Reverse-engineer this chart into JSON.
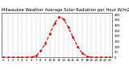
{
  "title": "Milwaukee Weather Average Solar Radiation per Hour W/m2 (Last 24 Hours)",
  "title_fontsize": 3.8,
  "line_color": "#ff0000",
  "bg_color": "#ffffff",
  "plot_bg_color": "#ffffff",
  "grid_color": "#888888",
  "x_values": [
    0,
    1,
    2,
    3,
    4,
    5,
    6,
    7,
    8,
    9,
    10,
    11,
    12,
    13,
    14,
    15,
    16,
    17,
    18,
    19,
    20,
    21,
    22,
    23
  ],
  "y_values": [
    0,
    0,
    0,
    0,
    0,
    0,
    2,
    15,
    60,
    130,
    220,
    320,
    380,
    360,
    280,
    190,
    100,
    40,
    10,
    1,
    0,
    0,
    0,
    0
  ],
  "ylim": [
    0,
    420
  ],
  "xlim": [
    -0.5,
    23.5
  ],
  "yticks": [
    0,
    50,
    100,
    150,
    200,
    250,
    300,
    350,
    400
  ],
  "ytick_labels": [
    "0",
    "50",
    "100",
    "150",
    "200",
    "250",
    "300",
    "350",
    "400"
  ],
  "xticks": [
    0,
    1,
    2,
    3,
    4,
    5,
    6,
    7,
    8,
    9,
    10,
    11,
    12,
    13,
    14,
    15,
    16,
    17,
    18,
    19,
    20,
    21,
    22,
    23
  ],
  "tick_fontsize": 2.8,
  "line_width": 0.8,
  "marker": "o",
  "marker_size": 1.0,
  "linestyle": "--"
}
